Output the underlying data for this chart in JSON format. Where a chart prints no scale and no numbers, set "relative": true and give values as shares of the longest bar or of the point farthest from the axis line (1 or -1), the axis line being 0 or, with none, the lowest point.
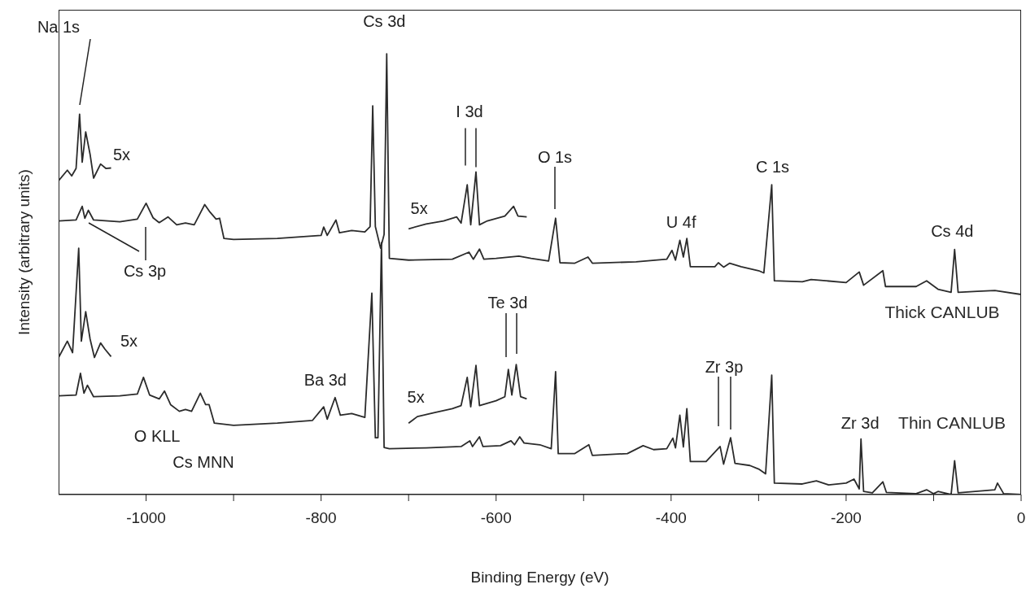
{
  "chart_data": {
    "type": "line",
    "relative": true,
    "xlabel": "Binding Energy (eV)",
    "ylabel": "Intensity (arbitrary units)",
    "xlim": [
      -1100,
      0
    ],
    "xticks": [
      -1000,
      {
        "value": -900,
        "label": null
      },
      -800,
      {
        "value": -700,
        "label": null
      },
      -600,
      {
        "value": -500,
        "label": null
      },
      -400,
      {
        "value": -300,
        "label": null
      },
      -200,
      {
        "value": -100,
        "label": null
      },
      0
    ],
    "grid": false,
    "legend": false,
    "marker": "none",
    "line_style": "solid",
    "series": [
      {
        "name": "Thick CANLUB",
        "color": "#2b2b2b",
        "x": [
          -1100,
          -1080,
          -1073,
          -1070,
          -1066,
          -1060,
          -1030,
          -1010,
          -1000,
          -992,
          -985,
          -975,
          -965,
          -955,
          -945,
          -933,
          -927,
          -920,
          -916,
          -911,
          -900,
          -850,
          -800,
          -797,
          -793,
          -783,
          -779,
          -765,
          -750,
          -744,
          -741,
          -738,
          -732,
          -728,
          -725,
          -722,
          -700,
          -650,
          -631,
          -626,
          -619,
          -614,
          -600,
          -574,
          -560,
          -540,
          -532,
          -527,
          -510,
          -495,
          -490,
          -440,
          -405,
          -399,
          -395,
          -390,
          -386,
          -382,
          -378,
          -350,
          -346,
          -340,
          -333,
          -320,
          -300,
          -294,
          -285,
          -282,
          -250,
          -240,
          -200,
          -185,
          -180,
          -158,
          -155,
          -120,
          -108,
          -95,
          -80,
          -76,
          -72,
          -50,
          -30,
          0
        ],
        "values": [
          0.621,
          0.623,
          0.654,
          0.627,
          0.645,
          0.623,
          0.619,
          0.625,
          0.661,
          0.628,
          0.617,
          0.63,
          0.612,
          0.616,
          0.612,
          0.658,
          0.641,
          0.625,
          0.627,
          0.581,
          0.579,
          0.581,
          0.588,
          0.607,
          0.588,
          0.623,
          0.594,
          0.599,
          0.596,
          0.608,
          0.882,
          0.608,
          0.559,
          0.59,
          1.0,
          0.536,
          0.532,
          0.534,
          0.55,
          0.534,
          0.557,
          0.534,
          0.536,
          0.541,
          0.536,
          0.53,
          0.627,
          0.526,
          0.525,
          0.539,
          0.525,
          0.528,
          0.534,
          0.554,
          0.532,
          0.577,
          0.539,
          0.581,
          0.517,
          0.517,
          0.526,
          0.516,
          0.525,
          0.517,
          0.508,
          0.503,
          0.703,
          0.485,
          0.483,
          0.488,
          0.481,
          0.505,
          0.475,
          0.508,
          0.472,
          0.472,
          0.485,
          0.466,
          0.459,
          0.556,
          0.459,
          0.461,
          0.463,
          0.454
        ]
      },
      {
        "name": "Thin CANLUB",
        "color": "#2b2b2b",
        "x": [
          -1100,
          -1080,
          -1075,
          -1071,
          -1067,
          -1060,
          -1030,
          -1010,
          -1003,
          -996,
          -985,
          -979,
          -972,
          -962,
          -955,
          -948,
          -938,
          -932,
          -928,
          -922,
          -900,
          -850,
          -810,
          -797,
          -793,
          -784,
          -778,
          -765,
          -750,
          -742,
          -738,
          -735,
          -731,
          -728,
          -722,
          -680,
          -640,
          -630,
          -627,
          -619,
          -615,
          -595,
          -583,
          -579,
          -573,
          -568,
          -550,
          -537,
          -532,
          -529,
          -510,
          -494,
          -490,
          -450,
          -432,
          -420,
          -405,
          -398,
          -395,
          -390,
          -386,
          -382,
          -378,
          -360,
          -344,
          -340,
          -332,
          -327,
          -310,
          -300,
          -292,
          -285,
          -282,
          -250,
          -234,
          -220,
          -200,
          -191,
          -185,
          -183,
          -180,
          -170,
          -158,
          -154,
          -120,
          -108,
          -100,
          -95,
          -80,
          -76,
          -72,
          -30,
          -27,
          -20,
          0
        ],
        "values": [
          0.224,
          0.226,
          0.275,
          0.23,
          0.248,
          0.222,
          0.224,
          0.228,
          0.266,
          0.226,
          0.217,
          0.235,
          0.204,
          0.189,
          0.193,
          0.189,
          0.23,
          0.204,
          0.204,
          0.162,
          0.157,
          0.162,
          0.168,
          0.199,
          0.171,
          0.22,
          0.18,
          0.184,
          0.175,
          0.457,
          0.129,
          0.129,
          0.572,
          0.107,
          0.104,
          0.106,
          0.109,
          0.122,
          0.109,
          0.131,
          0.109,
          0.111,
          0.122,
          0.113,
          0.131,
          0.117,
          0.113,
          0.104,
          0.279,
          0.093,
          0.093,
          0.113,
          0.089,
          0.093,
          0.111,
          0.102,
          0.104,
          0.128,
          0.106,
          0.18,
          0.108,
          0.195,
          0.075,
          0.075,
          0.109,
          0.069,
          0.129,
          0.071,
          0.066,
          0.058,
          0.047,
          0.271,
          0.026,
          0.024,
          0.031,
          0.022,
          0.026,
          0.035,
          0.013,
          0.126,
          0.007,
          0.004,
          0.029,
          0.005,
          0.002,
          0.011,
          0.002,
          0.007,
          0,
          0.077,
          0.004,
          0.011,
          0.026,
          0.002,
          0
        ]
      },
      {
        "color": "#2b2b2b",
        "x": [
          -1100,
          -1090,
          -1085,
          -1080,
          -1076,
          -1073,
          -1069,
          -1064,
          -1060,
          -1052,
          -1046,
          -1040
        ],
        "values": [
          0.712,
          0.736,
          0.723,
          0.74,
          0.863,
          0.754,
          0.823,
          0.772,
          0.718,
          0.75,
          0.74,
          0.741
        ]
      },
      {
        "color": "#2b2b2b",
        "x": [
          -700,
          -680,
          -660,
          -645,
          -640,
          -633,
          -629,
          -623,
          -619,
          -610,
          -590,
          -580,
          -575,
          -565
        ],
        "values": [
          0.603,
          0.614,
          0.621,
          0.63,
          0.616,
          0.703,
          0.612,
          0.732,
          0.612,
          0.621,
          0.632,
          0.654,
          0.632,
          0.63
        ]
      },
      {
        "color": "#2b2b2b",
        "x": [
          -1100,
          -1090,
          -1084,
          -1077,
          -1074,
          -1069,
          -1064,
          -1059,
          -1052,
          -1047,
          -1040
        ],
        "values": [
          0.311,
          0.348,
          0.322,
          0.559,
          0.348,
          0.415,
          0.353,
          0.311,
          0.344,
          0.33,
          0.313
        ]
      },
      {
        "color": "#2b2b2b",
        "x": [
          -700,
          -690,
          -670,
          -650,
          -640,
          -633,
          -629,
          -623,
          -619,
          -600,
          -590,
          -586,
          -582,
          -577,
          -572,
          -565
        ],
        "values": [
          0.162,
          0.177,
          0.186,
          0.195,
          0.202,
          0.266,
          0.199,
          0.293,
          0.202,
          0.213,
          0.222,
          0.284,
          0.226,
          0.295,
          0.222,
          0.217
        ]
      }
    ],
    "annotations": [
      "Na 1s",
      {
        "text": "Cs 3d",
        "x": -725,
        "y": 1.0
      },
      {
        "text": "I 3d",
        "x": -623,
        "y": 0.732
      },
      "O 1s",
      {
        "text": "U 4f",
        "x": -382,
        "y": 0.581
      },
      {
        "text": "C 1s",
        "x": -285,
        "y": 0.703
      },
      {
        "text": "Cs 4d",
        "x": -76,
        "y": 0.556
      },
      "Cs 3p",
      {
        "text": "5x",
        "x": -1040,
        "y": 0.741
      },
      {
        "text": "5x",
        "x": -700,
        "y": 0.603
      },
      "Te 3d",
      {
        "text": "5x",
        "x": -1040,
        "y": 0.313
      },
      {
        "text": "Ba 3d",
        "x": -784,
        "y": 0.22
      },
      {
        "text": "5x",
        "x": -700,
        "y": 0.162
      },
      {
        "text": "O KLL",
        "x": -979,
        "y": 0.235
      },
      "Cs MNN",
      "Zr 3p",
      {
        "text": "Zr 3d",
        "x": -183,
        "y": 0.126
      }
    ]
  }
}
